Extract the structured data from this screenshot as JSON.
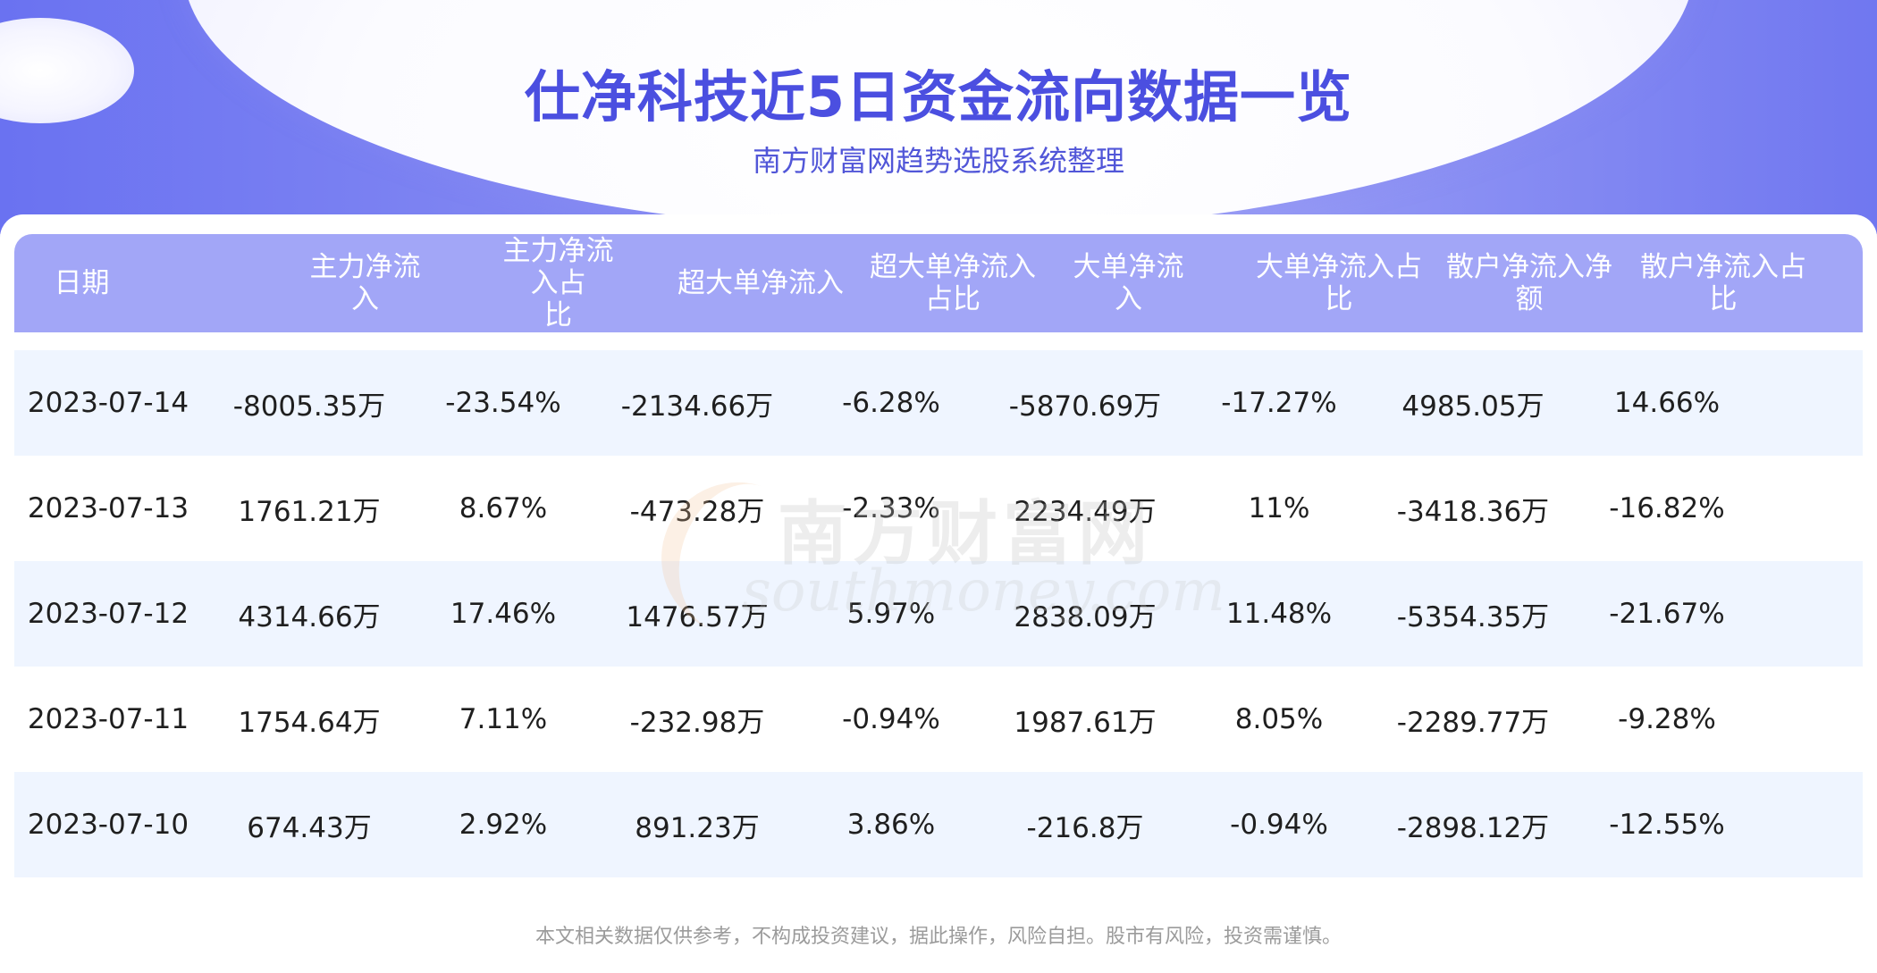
{
  "title": "仕净科技近5日资金流向数据一览",
  "subtitle": "南方财富网趋势选股系统整理",
  "columns": [
    [
      "日期"
    ],
    [
      "主力净流入"
    ],
    [
      "主力净流入占",
      "比"
    ],
    [
      "超大单净流入"
    ],
    [
      "超大单净流入",
      "占比"
    ],
    [
      "大单净流入"
    ],
    [
      "大单净流入占",
      "比"
    ],
    [
      "散户净流入净",
      "额"
    ],
    [
      "散户净流入占",
      "比"
    ]
  ],
  "rows": [
    [
      "2023-07-14",
      "-8005.35万",
      "-23.54%",
      "-2134.66万",
      "-6.28%",
      "-5870.69万",
      "-17.27%",
      "4985.05万",
      "14.66%"
    ],
    [
      "2023-07-13",
      "1761.21万",
      "8.67%",
      "-473.28万",
      "-2.33%",
      "2234.49万",
      "11%",
      "-3418.36万",
      "-16.82%"
    ],
    [
      "2023-07-12",
      "4314.66万",
      "17.46%",
      "1476.57万",
      "5.97%",
      "2838.09万",
      "11.48%",
      "-5354.35万",
      "-21.67%"
    ],
    [
      "2023-07-11",
      "1754.64万",
      "7.11%",
      "-232.98万",
      "-0.94%",
      "1987.61万",
      "8.05%",
      "-2289.77万",
      "-9.28%"
    ],
    [
      "2023-07-10",
      "674.43万",
      "2.92%",
      "891.23万",
      "3.86%",
      "-216.8万",
      "-0.94%",
      "-2898.12万",
      "-12.55%"
    ]
  ],
  "watermark": {
    "cn": "南方财富网",
    "en": "southmoney.com"
  },
  "footer": "本文相关数据仅供参考，不构成投资建议，据此操作，风险自担。股市有风险，投资需谨慎。",
  "colors": {
    "title": "#4b4fe0",
    "header_bg": "#a2a6f7",
    "row_alt_bg": "#eff5ff"
  }
}
